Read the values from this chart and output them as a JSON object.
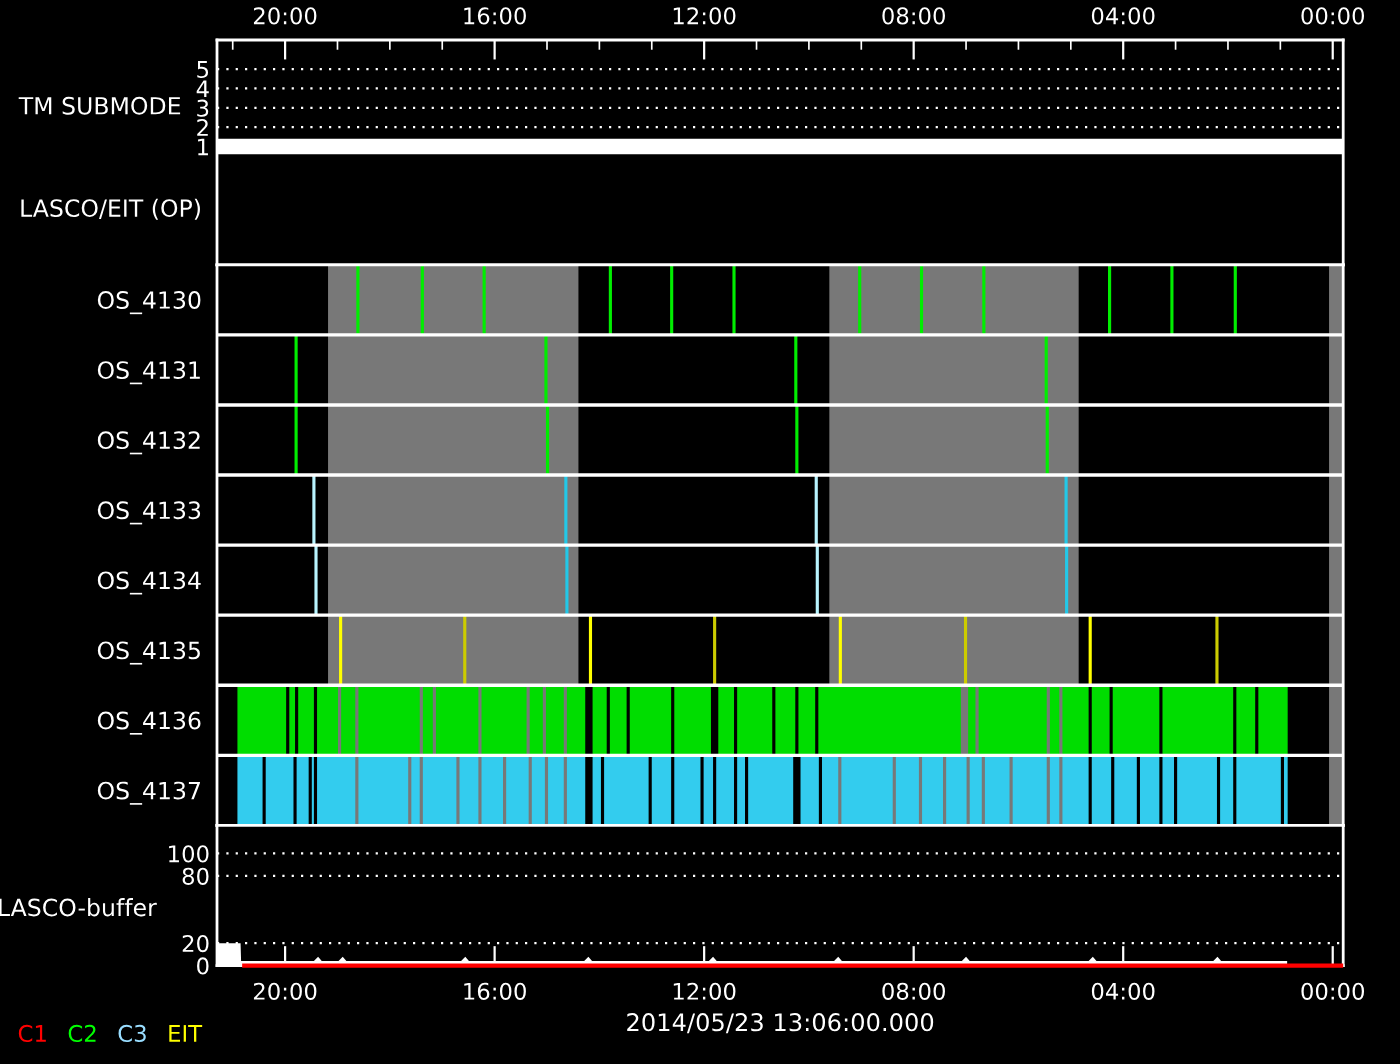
{
  "chart_data": [
    {
      "type": "line",
      "ylabel": "TM SUBMODE",
      "annotations": [
        "LASCO/EIT (OP)"
      ],
      "x": [
        21.3,
        -0.2
      ],
      "values": [
        1,
        1
      ],
      "color": "#ffffff",
      "xlim": [
        21.3,
        -0.2
      ],
      "xticks": [
        {
          "value": 21,
          "label": null
        },
        {
          "value": 20,
          "label": "20:00"
        },
        {
          "value": 19,
          "label": null
        },
        {
          "value": 18,
          "label": null
        },
        {
          "value": 17,
          "label": null
        },
        {
          "value": 16,
          "label": "16:00"
        },
        {
          "value": 15,
          "label": null
        },
        {
          "value": 14,
          "label": null
        },
        {
          "value": 13,
          "label": null
        },
        {
          "value": 12,
          "label": "12:00"
        },
        {
          "value": 11,
          "label": null
        },
        {
          "value": 10,
          "label": null
        },
        {
          "value": 9,
          "label": null
        },
        {
          "value": 8,
          "label": "08:00"
        },
        {
          "value": 7,
          "label": null
        },
        {
          "value": 6,
          "label": null
        },
        {
          "value": 5,
          "label": null
        },
        {
          "value": 4,
          "label": "04:00"
        },
        {
          "value": 3,
          "label": null
        },
        {
          "value": 2,
          "label": null
        },
        {
          "value": 1,
          "label": null
        },
        {
          "value": 0,
          "label": "00:00"
        }
      ],
      "ylim": [
        -5.1,
        6.5
      ],
      "yticks": [
        1,
        2,
        3,
        4,
        5
      ],
      "grid": "y"
    },
    {
      "type": "bar",
      "orientation": "horizontal",
      "categories": [
        "OS_4130",
        "OS_4131",
        "OS_4132",
        "OS_4133",
        "OS_4134",
        "OS_4135",
        "OS_4136",
        "OS_4137"
      ],
      "colors": [
        "#00ee00",
        "#00ee00",
        "#00ee00",
        "#22c8e8",
        "#22c8e8",
        "#ffff00",
        "#00dd00",
        "#33ccee"
      ],
      "xlim": [
        21.3,
        -0.2
      ],
      "tick_labels": "y",
      "grid": "y",
      "bands": [
        {
          "axis": "x",
          "from": 19.18,
          "to": 14.4,
          "color": "#787878"
        },
        {
          "axis": "x",
          "from": 9.61,
          "to": 4.85,
          "color": "#787878"
        },
        {
          "axis": "x",
          "from": 0.07,
          "to": -0.2,
          "color": "#787878"
        }
      ],
      "series": [
        {
          "values": [
            0.06,
            0.06,
            0.06,
            0.06,
            0.06,
            0.06,
            0.56,
            0.07
          ],
          "base": [
            1.83,
            5.44,
            5.42,
            5.06,
            5.05,
            2.18,
            0.86,
            0.86
          ],
          "colors": [
            "#00ee00",
            "#00ee00",
            "#00ee00",
            "#22c8e8",
            "#22c8e8",
            "#cccc00",
            "#00dd00",
            "#33ccee"
          ]
        },
        {
          "values": [
            0.06,
            0.06,
            0.06,
            0.06,
            0.06,
            0.06,
            0.36,
            0.85
          ],
          "base": [
            3.04,
            10.22,
            10.2,
            9.83,
            9.81,
            4.6,
            1.48,
            0.99
          ],
          "colors": [
            "#00ee00",
            "#00ee00",
            "#00ee00",
            "#b8f4ff",
            "#b8f4ff",
            "#ffff00",
            "#00dd00",
            "#33ccee"
          ]
        },
        {
          "values": [
            0.06,
            0.06,
            0.06,
            0.06,
            0.06,
            0.06,
            1.35,
            0.25
          ],
          "base": [
            4.23,
            14.99,
            14.96,
            14.61,
            14.59,
            6.98,
            1.9,
            1.9
          ],
          "colors": [
            "#00ee00",
            "#00ee00",
            "#00ee00",
            "#22c8e8",
            "#22c8e8",
            "#cccc00",
            "#00dd00",
            "#33ccee"
          ]
        },
        {
          "values": [
            0.06,
            0.06,
            0.06,
            0.06,
            0.06,
            0.06,
            0.89,
            0.76
          ],
          "base": [
            6.63,
            19.76,
            19.76,
            19.42,
            19.38,
            9.37,
            3.31,
            2.21
          ],
          "colors": [
            "#00ee00",
            "#00ee00",
            "#00ee00",
            "#b8f4ff",
            "#b8f4ff",
            "#ffff00",
            "#00dd00",
            "#33ccee"
          ]
        },
        {
          "values": [
            0.06,
            null,
            null,
            null,
            null,
            0.06,
            0.34,
            0.22
          ],
          "base": [
            7.82,
            null,
            null,
            null,
            null,
            11.77,
            4.26,
            3.03
          ],
          "colors": [
            "#00ee00",
            null,
            null,
            null,
            null,
            "#cccc00",
            "#00dd00",
            "#33ccee"
          ]
        },
        {
          "values": [
            0.06,
            null,
            null,
            null,
            null,
            0.06,
            0.5,
            0.37
          ],
          "base": [
            9.0,
            null,
            null,
            null,
            null,
            14.14,
            4.66,
            3.31
          ],
          "colors": [
            "#00ee00",
            null,
            null,
            null,
            null,
            "#ffff00",
            "#00dd00",
            "#33ccee"
          ]
        },
        {
          "values": [
            0.06,
            null,
            null,
            null,
            null,
            0.06,
            0.18,
            0.43
          ],
          "base": [
            11.4,
            null,
            null,
            null,
            null,
            16.54,
            5.22,
            3.74
          ],
          "colors": [
            "#00ee00",
            null,
            null,
            null,
            null,
            "#cccc00",
            "#00dd00",
            "#33ccee"
          ]
        },
        {
          "values": [
            0.06,
            null,
            null,
            null,
            null,
            0.06,
            1.3,
            0.37
          ],
          "base": [
            12.59,
            null,
            null,
            null,
            null,
            18.91,
            5.46,
            4.23
          ],
          "colors": [
            "#00ee00",
            null,
            null,
            null,
            null,
            "#ffff00",
            "#00dd00",
            "#33ccee"
          ]
        },
        {
          "values": [
            0.06,
            null,
            null,
            null,
            null,
            null,
            0.14,
            0.5
          ],
          "base": [
            13.76,
            null,
            null,
            null,
            null,
            null,
            6.82,
            4.66
          ],
          "colors": [
            "#00ee00",
            null,
            null,
            null,
            null,
            null,
            "#00dd00",
            "#33ccee"
          ]
        },
        {
          "values": [
            0.06,
            null,
            null,
            null,
            null,
            null,
            2.72,
            0.18
          ],
          "base": [
            16.17,
            null,
            null,
            null,
            null,
            null,
            7.1,
            5.22
          ],
          "colors": [
            "#00ee00",
            null,
            null,
            null,
            null,
            null,
            "#00dd00",
            "#33ccee"
          ]
        },
        {
          "values": [
            0.06,
            null,
            null,
            null,
            null,
            null,
            0.32,
            0.65
          ],
          "base": [
            17.35,
            null,
            null,
            null,
            null,
            null,
            9.88,
            5.46
          ],
          "colors": [
            "#00ee00",
            null,
            null,
            null,
            null,
            null,
            "#00dd00",
            "#33ccee"
          ]
        },
        {
          "values": [
            0.06,
            null,
            null,
            null,
            null,
            null,
            0.38,
            0.47
          ],
          "base": [
            18.58,
            null,
            null,
            null,
            null,
            null,
            10.26,
            6.17
          ],
          "colors": [
            "#00ee00",
            null,
            null,
            null,
            null,
            null,
            "#00dd00",
            "#33ccee"
          ]
        },
        {
          "values": [
            null,
            null,
            null,
            null,
            null,
            null,
            0.67,
            0.23
          ],
          "base": [
            null,
            null,
            null,
            null,
            null,
            null,
            10.7,
            6.7
          ],
          "colors": [
            null,
            null,
            null,
            null,
            null,
            null,
            "#00dd00",
            "#33ccee"
          ]
        },
        {
          "values": [
            null,
            null,
            null,
            null,
            null,
            null,
            0.3,
            0.39
          ],
          "base": [
            null,
            null,
            null,
            null,
            null,
            null,
            11.43,
            6.99
          ],
          "colors": [
            null,
            null,
            null,
            null,
            null,
            null,
            "#00dd00",
            "#33ccee"
          ]
        },
        {
          "values": [
            null,
            null,
            null,
            null,
            null,
            null,
            0.7,
            0.4
          ],
          "base": [
            null,
            null,
            null,
            null,
            null,
            null,
            11.87,
            7.44
          ],
          "colors": [
            null,
            null,
            null,
            null,
            null,
            null,
            "#00dd00",
            "#33ccee"
          ]
        },
        {
          "values": [
            null,
            null,
            null,
            null,
            null,
            null,
            0.79,
            0.44
          ],
          "base": [
            null,
            null,
            null,
            null,
            null,
            null,
            12.63,
            7.9
          ],
          "colors": [
            null,
            null,
            null,
            null,
            null,
            null,
            "#00dd00",
            "#33ccee"
          ]
        },
        {
          "values": [
            null,
            null,
            null,
            null,
            null,
            null,
            0.32,
            0.98
          ],
          "base": [
            null,
            null,
            null,
            null,
            null,
            null,
            13.48,
            8.4
          ],
          "colors": [
            null,
            null,
            null,
            null,
            null,
            null,
            "#00dd00",
            "#33ccee"
          ]
        },
        {
          "values": [
            null,
            null,
            null,
            null,
            null,
            null,
            0.27,
            0.31
          ],
          "base": [
            null,
            null,
            null,
            null,
            null,
            null,
            13.86,
            9.44
          ],
          "colors": [
            null,
            null,
            null,
            null,
            null,
            null,
            "#00dd00",
            "#33ccee"
          ]
        },
        {
          "values": [
            null,
            null,
            null,
            null,
            null,
            null,
            0.35,
            0.35
          ],
          "base": [
            null,
            null,
            null,
            null,
            null,
            null,
            14.27,
            9.81
          ],
          "colors": [
            null,
            null,
            null,
            null,
            null,
            null,
            "#00dd00",
            "#33ccee"
          ]
        },
        {
          "values": [
            null,
            null,
            null,
            null,
            null,
            null,
            0.34,
            0.86
          ],
          "base": [
            null,
            null,
            null,
            null,
            null,
            null,
            14.68,
            10.3
          ],
          "colors": [
            null,
            null,
            null,
            null,
            null,
            null,
            "#00dd00",
            "#33ccee"
          ]
        },
        {
          "values": [
            null,
            null,
            null,
            null,
            null,
            null,
            0.25,
            0.15
          ],
          "base": [
            null,
            null,
            null,
            null,
            null,
            null,
            15.08,
            11.22
          ],
          "colors": [
            null,
            null,
            null,
            null,
            null,
            null,
            "#00dd00",
            "#33ccee"
          ]
        },
        {
          "values": [
            null,
            null,
            null,
            null,
            null,
            null,
            0.86,
            0.34
          ],
          "base": [
            null,
            null,
            null,
            null,
            null,
            null,
            15.39,
            11.43
          ],
          "colors": [
            null,
            null,
            null,
            null,
            null,
            null,
            "#00dd00",
            "#33ccee"
          ]
        },
        {
          "values": [
            null,
            null,
            null,
            null,
            null,
            null,
            0.81,
            0.18
          ],
          "base": [
            null,
            null,
            null,
            null,
            null,
            null,
            16.31,
            11.83
          ],
          "colors": [
            null,
            null,
            null,
            null,
            null,
            null,
            "#00dd00",
            "#33ccee"
          ]
        },
        {
          "values": [
            null,
            null,
            null,
            null,
            null,
            null,
            0.19,
            0.5
          ],
          "base": [
            null,
            null,
            null,
            null,
            null,
            null,
            17.18,
            12.07
          ],
          "colors": [
            null,
            null,
            null,
            null,
            null,
            null,
            "#00dd00",
            "#33ccee"
          ]
        },
        {
          "values": [
            null,
            null,
            null,
            null,
            null,
            null,
            1.17,
            0.37
          ],
          "base": [
            null,
            null,
            null,
            null,
            null,
            null,
            17.43,
            12.63
          ],
          "colors": [
            null,
            null,
            null,
            null,
            null,
            null,
            "#00dd00",
            "#33ccee"
          ]
        },
        {
          "values": [
            null,
            null,
            null,
            null,
            null,
            null,
            0.27,
            0.85
          ],
          "base": [
            null,
            null,
            null,
            null,
            null,
            null,
            18.66,
            13.06
          ],
          "colors": [
            null,
            null,
            null,
            null,
            null,
            null,
            "#00dd00",
            "#33ccee"
          ]
        },
        {
          "values": [
            null,
            null,
            null,
            null,
            null,
            null,
            0.4,
            0.16
          ],
          "base": [
            null,
            null,
            null,
            null,
            null,
            null,
            18.99,
            13.97
          ],
          "colors": [
            null,
            null,
            null,
            null,
            null,
            null,
            "#00dd00",
            "#33ccee"
          ]
        },
        {
          "values": [
            null,
            null,
            null,
            null,
            null,
            null,
            0.3,
            0.35
          ],
          "base": [
            null,
            null,
            null,
            null,
            null,
            null,
            19.45,
            14.27
          ],
          "colors": [
            null,
            null,
            null,
            null,
            null,
            null,
            "#00dd00",
            "#33ccee"
          ]
        },
        {
          "values": [
            null,
            null,
            null,
            null,
            null,
            null,
            0.11,
            0.3
          ],
          "base": [
            null,
            null,
            null,
            null,
            null,
            null,
            19.81,
            14.68
          ],
          "colors": [
            null,
            null,
            null,
            null,
            null,
            null,
            "#00dd00",
            "#33ccee"
          ]
        },
        {
          "values": [
            null,
            null,
            null,
            null,
            null,
            null,
            0.93,
            0.25
          ],
          "base": [
            null,
            null,
            null,
            null,
            null,
            null,
            19.98,
            15.04
          ],
          "colors": [
            null,
            null,
            null,
            null,
            null,
            null,
            "#00dd00",
            "#33ccee"
          ]
        },
        {
          "values": [
            null,
            null,
            null,
            null,
            null,
            null,
            null,
            0.43
          ],
          "base": [
            null,
            null,
            null,
            null,
            null,
            null,
            null,
            15.35
          ]
        },
        {
          "values": [
            null,
            null,
            null,
            null,
            null,
            null,
            null,
            0.41
          ],
          "base": [
            null,
            null,
            null,
            null,
            null,
            null,
            null,
            15.84
          ]
        },
        {
          "values": [
            null,
            null,
            null,
            null,
            null,
            null,
            null,
            0.36
          ],
          "base": [
            null,
            null,
            null,
            null,
            null,
            null,
            null,
            16.31
          ]
        },
        {
          "values": [
            null,
            null,
            null,
            null,
            null,
            null,
            null,
            0.64
          ],
          "base": [
            null,
            null,
            null,
            null,
            null,
            null,
            null,
            16.73
          ]
        },
        {
          "values": [
            null,
            null,
            null,
            null,
            null,
            null,
            null,
            0.16
          ],
          "base": [
            null,
            null,
            null,
            null,
            null,
            null,
            null,
            17.43
          ]
        },
        {
          "values": [
            null,
            null,
            null,
            null,
            null,
            null,
            null,
            0.95
          ],
          "base": [
            null,
            null,
            null,
            null,
            null,
            null,
            null,
            17.65
          ]
        },
        {
          "values": [
            null,
            null,
            null,
            null,
            null,
            null,
            null,
            0.73
          ],
          "base": [
            null,
            null,
            null,
            null,
            null,
            null,
            null,
            18.66
          ]
        },
        {
          "values": [
            null,
            null,
            null,
            null,
            null,
            null,
            null,
            0.04
          ],
          "base": [
            null,
            null,
            null,
            null,
            null,
            null,
            null,
            19.45
          ]
        },
        {
          "values": [
            null,
            null,
            null,
            null,
            null,
            null,
            null,
            0.23
          ],
          "base": [
            null,
            null,
            null,
            null,
            null,
            null,
            null,
            19.55
          ]
        },
        {
          "values": [
            null,
            null,
            null,
            null,
            null,
            null,
            null,
            0.53
          ],
          "base": [
            null,
            null,
            null,
            null,
            null,
            null,
            null,
            19.84
          ]
        },
        {
          "values": [
            null,
            null,
            null,
            null,
            null,
            null,
            null,
            0.48
          ],
          "base": [
            null,
            null,
            null,
            null,
            null,
            null,
            null,
            20.43
          ]
        }
      ]
    },
    {
      "type": "area",
      "ylabel": "LASCO-buffer",
      "xlabel": "2014/05/23 13:06:00.000",
      "xlim": [
        21.3,
        -0.2
      ],
      "xticks": [
        {
          "value": 20,
          "label": "20:00"
        },
        {
          "value": 16,
          "label": "16:00"
        },
        {
          "value": 12,
          "label": "12:00"
        },
        {
          "value": 8,
          "label": "08:00"
        },
        {
          "value": 4,
          "label": "04:00"
        },
        {
          "value": 0,
          "label": "00:00"
        }
      ],
      "ylim": [
        0,
        125
      ],
      "yticks": [
        0,
        20,
        80,
        100
      ],
      "grid": "y",
      "series": [
        {
          "type": "area",
          "color": "#ffffff",
          "x": [
            21.3,
            20.85,
            20.84,
            19.45,
            19.37,
            19.3,
            18.98,
            18.9,
            18.83,
            16.64,
            16.56,
            16.49,
            14.29,
            14.21,
            14.14,
            11.91,
            11.83,
            11.76,
            9.52,
            9.44,
            9.37,
            7.08,
            7.0,
            6.93,
            4.66,
            4.58,
            4.51,
            2.28,
            2.2,
            2.13,
            0.87
          ],
          "values": [
            20,
            20,
            4,
            4,
            8,
            4,
            4,
            8,
            4,
            4,
            8,
            4,
            4,
            8,
            4,
            4,
            8,
            4,
            4,
            8,
            4,
            4,
            8,
            4,
            4,
            8,
            4,
            4,
            8,
            4,
            4
          ]
        },
        {
          "type": "line",
          "color": "#ff0000",
          "x": [
            20.82,
            -0.2
          ],
          "values": [
            0,
            0
          ]
        }
      ]
    },
    {
      "type": "other",
      "series": [
        {
          "name": "C1",
          "color": "#ff0000"
        },
        {
          "name": "C2",
          "color": "#00ff00"
        },
        {
          "name": "C3",
          "color": "#99ddff"
        },
        {
          "name": "EIT",
          "color": "#ffff00"
        }
      ]
    }
  ]
}
